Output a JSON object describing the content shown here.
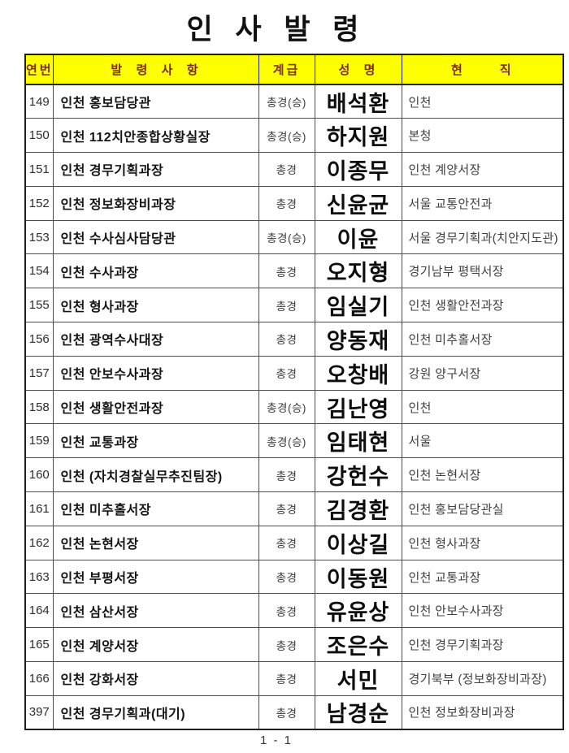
{
  "title": "인 사 발 령",
  "colors": {
    "header_bg": "#ffff00",
    "header_text": "#7c2d21",
    "border_dark": "#1f1f1f"
  },
  "table": {
    "headers": [
      {
        "key": "no",
        "label": "연번"
      },
      {
        "key": "assignment",
        "label": "발  령  사  항"
      },
      {
        "key": "rank",
        "label": "계급"
      },
      {
        "key": "name",
        "label": "성  명"
      },
      {
        "key": "position",
        "label": "현      직"
      }
    ],
    "rows": [
      {
        "no": "149",
        "assignment": "인천 홍보담당관",
        "rank": "총경(승)",
        "name": "배석환",
        "position": "인천"
      },
      {
        "no": "150",
        "assignment": "인천 112치안종합상황실장",
        "rank": "총경(승)",
        "name": "하지원",
        "position": "본청"
      },
      {
        "no": "151",
        "assignment": "인천 경무기획과장",
        "rank": "총경",
        "name": "이종무",
        "position": "인천 계양서장"
      },
      {
        "no": "152",
        "assignment": "인천 정보화장비과장",
        "rank": "총경",
        "name": "신윤균",
        "position": "서울 교통안전과"
      },
      {
        "no": "153",
        "assignment": "인천 수사심사담당관",
        "rank": "총경(승)",
        "name": "이윤",
        "position": "서울 경무기획과(치안지도관)"
      },
      {
        "no": "154",
        "assignment": "인천 수사과장",
        "rank": "총경",
        "name": "오지형",
        "position": "경기남부 평택서장"
      },
      {
        "no": "155",
        "assignment": "인천 형사과장",
        "rank": "총경",
        "name": "임실기",
        "position": "인천 생활안전과장"
      },
      {
        "no": "156",
        "assignment": "인천 광역수사대장",
        "rank": "총경",
        "name": "양동재",
        "position": "인천 미추홀서장"
      },
      {
        "no": "157",
        "assignment": "인천 안보수사과장",
        "rank": "총경",
        "name": "오창배",
        "position": "강원 양구서장"
      },
      {
        "no": "158",
        "assignment": "인천 생활안전과장",
        "rank": "총경(승)",
        "name": "김난영",
        "position": "인천"
      },
      {
        "no": "159",
        "assignment": "인천 교통과장",
        "rank": "총경(승)",
        "name": "임태현",
        "position": "서울"
      },
      {
        "no": "160",
        "assignment": "인천 (자치경찰실무추진팀장)",
        "rank": "총경",
        "name": "강헌수",
        "position": "인천 논현서장"
      },
      {
        "no": "161",
        "assignment": "인천 미추홀서장",
        "rank": "총경",
        "name": "김경환",
        "position": "인천 홍보담당관실"
      },
      {
        "no": "162",
        "assignment": "인천 논현서장",
        "rank": "총경",
        "name": "이상길",
        "position": "인천 형사과장"
      },
      {
        "no": "163",
        "assignment": "인천 부평서장",
        "rank": "총경",
        "name": "이동원",
        "position": "인천 교통과장"
      },
      {
        "no": "164",
        "assignment": "인천 삼산서장",
        "rank": "총경",
        "name": "유윤상",
        "position": "인천 안보수사과장"
      },
      {
        "no": "165",
        "assignment": "인천 계양서장",
        "rank": "총경",
        "name": "조은수",
        "position": "인천 경무기획과장"
      },
      {
        "no": "166",
        "assignment": "인천 강화서장",
        "rank": "총경",
        "name": "서민",
        "position": "경기북부 (정보화장비과장)"
      },
      {
        "no": "397",
        "assignment": "인천 경무기획과(대기)",
        "rank": "총경",
        "name": "남경순",
        "position": "인천 정보화장비과장"
      }
    ]
  },
  "footer": {
    "page_label": "1 - 1"
  }
}
